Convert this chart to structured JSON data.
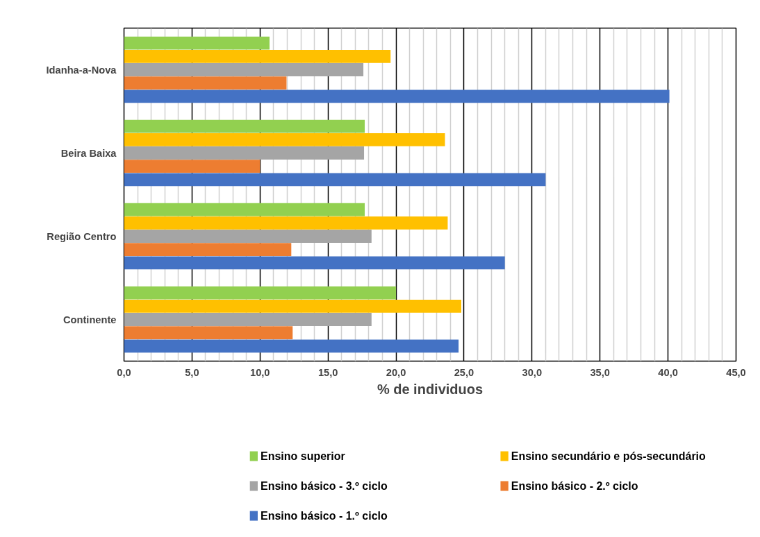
{
  "chart_data": {
    "type": "bar",
    "orientation": "horizontal",
    "xlabel": "% de individuos",
    "categories": [
      "Idanha-a-Nova",
      "Beira Baixa",
      "Região Centro",
      "Continente"
    ],
    "series": [
      {
        "name": "Ensino superior",
        "color": "#92d050",
        "values": [
          10.7,
          17.7,
          17.7,
          20.0
        ]
      },
      {
        "name": "Ensino secundário e pós-secundário",
        "color": "#ffc000",
        "values": [
          19.6,
          23.6,
          23.8,
          24.8
        ]
      },
      {
        "name": "Ensino básico - 3.º ciclo",
        "color": "#a5a5a5",
        "values": [
          17.6,
          17.65,
          18.2,
          18.2
        ]
      },
      {
        "name": "Ensino básico - 2.º ciclo",
        "color": "#ed7d31",
        "values": [
          11.95,
          10.0,
          12.3,
          12.4
        ]
      },
      {
        "name": "Ensino básico - 1.º ciclo",
        "color": "#4472c4",
        "values": [
          40.1,
          31.0,
          28.0,
          24.6
        ]
      }
    ],
    "xlim": [
      0,
      45
    ],
    "xticks": [
      {
        "value": 0,
        "label": "0,0"
      },
      {
        "value": 5,
        "label": "5,0"
      },
      {
        "value": 10,
        "label": "10,0"
      },
      {
        "value": 15,
        "label": "15,0"
      },
      {
        "value": 20,
        "label": "20,0"
      },
      {
        "value": 25,
        "label": "25,0"
      },
      {
        "value": 30,
        "label": "30,0"
      },
      {
        "value": 35,
        "label": "35,0"
      },
      {
        "value": 40,
        "label": "40,0"
      },
      {
        "value": 45,
        "label": "45,0"
      }
    ],
    "grid": "x",
    "legend": "bottom"
  }
}
